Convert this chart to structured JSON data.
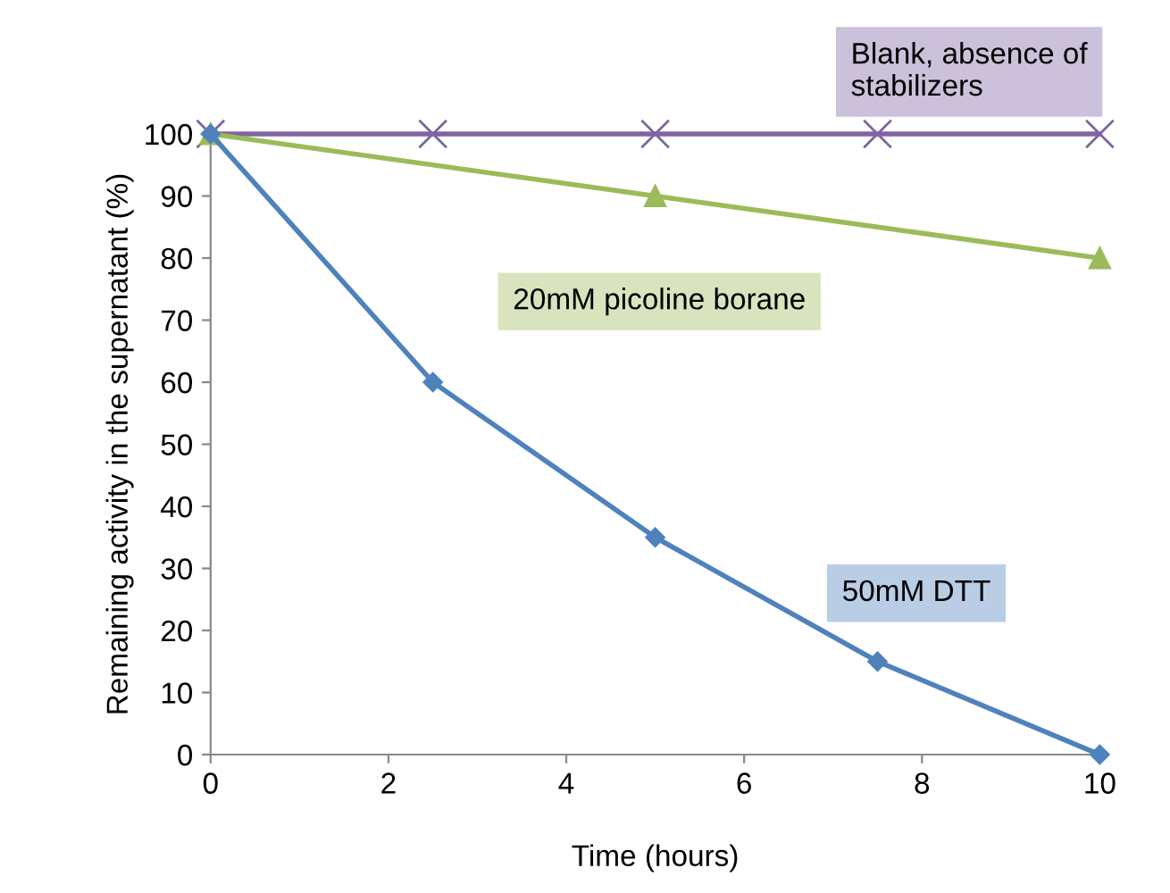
{
  "chart_data": {
    "type": "line",
    "xlabel": "Time (hours)",
    "ylabel": "Remaining activity in the supernatant (%)",
    "xlim": [
      0,
      10
    ],
    "xticks": [
      0,
      2,
      4,
      6,
      8,
      10
    ],
    "ylim": [
      0,
      100
    ],
    "yticks": [
      0,
      10,
      20,
      30,
      40,
      50,
      60,
      70,
      80,
      90,
      100
    ],
    "grid": false,
    "legend": false,
    "line_style": "solid",
    "series": [
      {
        "name": "Blank, absence of stabilizers",
        "color": "#8064a2",
        "marker": "cross",
        "x": [
          0,
          2.5,
          5,
          7.5,
          10
        ],
        "values": [
          100,
          100,
          100,
          100,
          100
        ]
      },
      {
        "name": "20mM picoline borane",
        "color": "#9bbb59",
        "marker": "triangle",
        "x": [
          0,
          5,
          10
        ],
        "values": [
          100,
          90,
          80
        ]
      },
      {
        "name": "50mM DTT",
        "color": "#4f81bd",
        "marker": "diamond",
        "x": [
          0,
          2.5,
          5,
          7.5,
          10
        ],
        "values": [
          100,
          60,
          35,
          15,
          0
        ]
      }
    ]
  }
}
